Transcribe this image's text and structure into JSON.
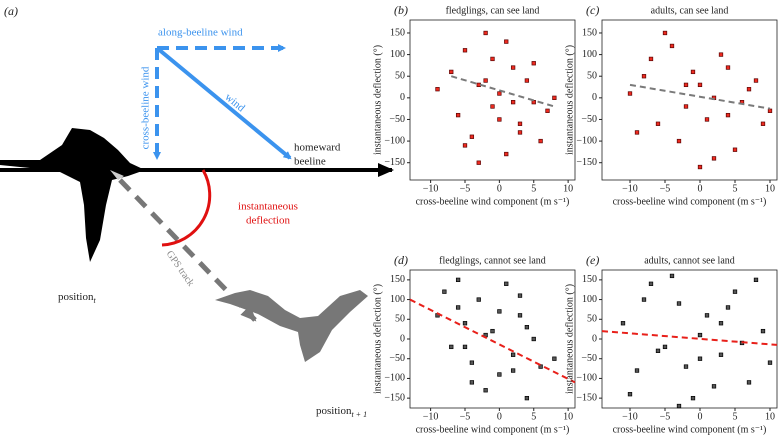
{
  "diagram": {
    "panel_label": "(a)",
    "along_label": "along-beeline wind",
    "wind_label": "wind",
    "cross_label": "cross-beeline wind",
    "beeline_label": [
      "homeward",
      "beeline"
    ],
    "deflection_label": [
      "instantaneous",
      "deflection"
    ],
    "gps_label": "GPS track",
    "position_label": "position",
    "position_sub": "t",
    "next_position_sub": "t + 1"
  },
  "chart_data": [
    {
      "type": "scatter",
      "panel_label": "(b)",
      "title": "fledglings, can see land",
      "x_label": "cross-beeline wind component (m s⁻¹)",
      "y_label": "instantaneous deflection (°)",
      "xlim": [
        -13,
        11
      ],
      "ylim": [
        -190,
        180
      ],
      "xticks": [
        {
          "value": -10,
          "label": "−10"
        },
        {
          "value": -5,
          "label": "−5"
        },
        0,
        5,
        10
      ],
      "yticks": [
        {
          "value": -150,
          "label": "−150"
        },
        {
          "value": -100,
          "label": "−100"
        },
        {
          "value": -50,
          "label": "−50"
        },
        0,
        50,
        100,
        150
      ],
      "color": "#ee2a1f",
      "edge_color": "#5a0505",
      "x": [
        -9,
        -7,
        -6,
        -5,
        -4,
        -3,
        -2,
        -1,
        0,
        1,
        2,
        3,
        4,
        5,
        6,
        7,
        -3,
        -1,
        1,
        3,
        -5,
        5,
        0,
        -2,
        2,
        8
      ],
      "y": [
        20,
        60,
        -40,
        110,
        -90,
        30,
        150,
        -20,
        10,
        -130,
        70,
        -60,
        40,
        -10,
        -100,
        -30,
        -150,
        90,
        130,
        -80,
        -110,
        80,
        -50,
        40,
        -10,
        0
      ],
      "trend": {
        "color": "#7a7a7a",
        "x": [
          -7,
          8
        ],
        "y": [
          50,
          -20
        ]
      }
    },
    {
      "type": "scatter",
      "panel_label": "(c)",
      "title": "adults, can see land",
      "x_label": "cross-beeline wind component (m s⁻¹)",
      "y_label": "instantaneous deflection (°)",
      "xlim": [
        -14,
        11
      ],
      "ylim": [
        -190,
        180
      ],
      "xticks": [
        {
          "value": -10,
          "label": "−10"
        },
        {
          "value": -5,
          "label": "−5"
        },
        0,
        5,
        10
      ],
      "yticks": [
        {
          "value": -150,
          "label": "−150"
        },
        {
          "value": -100,
          "label": "−100"
        },
        {
          "value": -50,
          "label": "−50"
        },
        0,
        50,
        100,
        150
      ],
      "color": "#ee2a1f",
      "edge_color": "#5a0505",
      "x": [
        -10,
        -8,
        -6,
        -4,
        -2,
        0,
        2,
        4,
        6,
        8,
        10,
        -9,
        -5,
        -3,
        -1,
        1,
        3,
        5,
        7,
        9,
        -7,
        0,
        2,
        -2,
        4
      ],
      "y": [
        10,
        50,
        -60,
        120,
        -20,
        30,
        -140,
        70,
        -10,
        40,
        -30,
        -80,
        150,
        -100,
        60,
        -50,
        100,
        -120,
        20,
        -60,
        90,
        -160,
        0,
        30,
        -40
      ],
      "trend": {
        "color": "#7a7a7a",
        "x": [
          -10,
          10
        ],
        "y": [
          30,
          -25
        ]
      }
    },
    {
      "type": "scatter",
      "panel_label": "(d)",
      "title": "fledglings, cannot see land",
      "x_label": "cross-beeline wind component (m s⁻¹)",
      "y_label": "instantaneous deflection (°)",
      "xlim": [
        -13,
        11
      ],
      "ylim": [
        -175,
        175
      ],
      "xticks": [
        {
          "value": -10,
          "label": "−10"
        },
        {
          "value": -5,
          "label": "−5"
        },
        0,
        5,
        10
      ],
      "yticks": [
        {
          "value": -150,
          "label": "−150"
        },
        {
          "value": -100,
          "label": "−100"
        },
        {
          "value": -50,
          "label": "−50"
        },
        0,
        50,
        100,
        150
      ],
      "color": "#555555",
      "edge_color": "#000000",
      "x": [
        -9,
        -8,
        -7,
        -6,
        -5,
        -4,
        -3,
        -2,
        -1,
        0,
        1,
        2,
        3,
        4,
        5,
        6,
        -6,
        -4,
        -2,
        0,
        2,
        4,
        -5,
        3,
        8
      ],
      "y": [
        60,
        120,
        -20,
        150,
        40,
        -60,
        100,
        -130,
        20,
        -90,
        140,
        -40,
        60,
        -150,
        0,
        -70,
        80,
        -110,
        10,
        70,
        -80,
        30,
        -20,
        110,
        -50
      ],
      "trend": {
        "color": "#e8201a",
        "x": [
          -13,
          11
        ],
        "y": [
          100,
          -110
        ]
      }
    },
    {
      "type": "scatter",
      "panel_label": "(e)",
      "title": "adults, cannot see land",
      "x_label": "cross-beeline wind component (m s⁻¹)",
      "y_label": "instantaneous deflection (°)",
      "xlim": [
        -14,
        11
      ],
      "ylim": [
        -175,
        175
      ],
      "xticks": [
        {
          "value": -10,
          "label": "−10"
        },
        {
          "value": -5,
          "label": "−5"
        },
        0,
        5,
        10
      ],
      "yticks": [
        {
          "value": -150,
          "label": "−150"
        },
        {
          "value": -100,
          "label": "−100"
        },
        {
          "value": -50,
          "label": "−50"
        },
        0,
        50,
        100,
        150
      ],
      "color": "#555555",
      "edge_color": "#000000",
      "x": [
        -11,
        -9,
        -7,
        -5,
        -3,
        -1,
        1,
        3,
        5,
        7,
        9,
        10,
        -10,
        -8,
        -6,
        -4,
        -2,
        0,
        2,
        4,
        6,
        8,
        -3,
        3,
        0
      ],
      "y": [
        40,
        -80,
        140,
        -20,
        90,
        -150,
        60,
        -40,
        120,
        -110,
        20,
        -60,
        -140,
        100,
        -30,
        160,
        -70,
        10,
        -120,
        80,
        -10,
        150,
        -170,
        40,
        -50
      ],
      "trend": {
        "color": "#e8201a",
        "x": [
          -14,
          11
        ],
        "y": [
          20,
          -15
        ]
      }
    }
  ]
}
